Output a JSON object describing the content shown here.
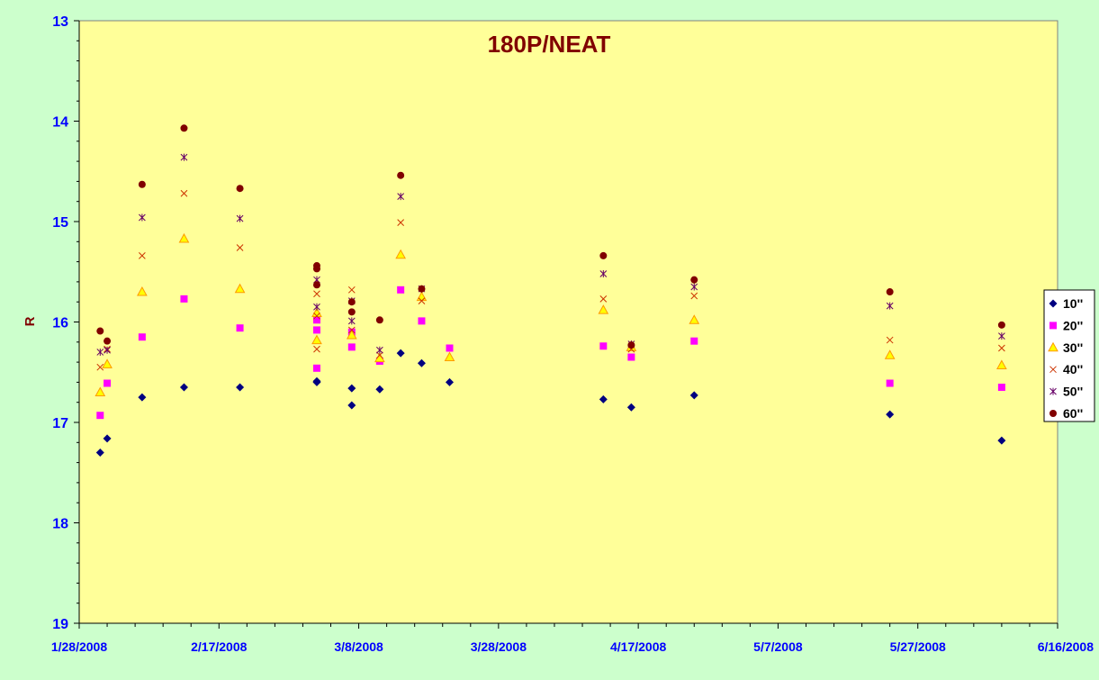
{
  "chart_data": {
    "type": "scatter",
    "title": "180P/NEAT",
    "xlabel": "",
    "ylabel": "R",
    "x_ticks": [
      "1/28/2008",
      "2/17/2008",
      "3/8/2008",
      "3/28/2008",
      "4/17/2008",
      "5/7/2008",
      "5/27/2008",
      "6/16/2008"
    ],
    "x_range": [
      "1/28/2008",
      "6/16/2008"
    ],
    "y_ticks": [
      "13",
      "14",
      "15",
      "16",
      "17",
      "18",
      "19"
    ],
    "ylim": [
      13,
      19
    ],
    "y_inverted": true,
    "legend_position": "right",
    "colors": {
      "background": "#ccffcc",
      "plot_area": "#ffff99",
      "title": "#800000",
      "tick_labels": "#0000ff"
    },
    "series": [
      {
        "name": "10''",
        "marker": "diamond",
        "color": "#000080",
        "points": [
          {
            "x": "1/31/2008",
            "y": 17.3
          },
          {
            "x": "2/1/2008",
            "y": 17.16
          },
          {
            "x": "2/6/2008",
            "y": 16.75
          },
          {
            "x": "2/12/2008",
            "y": 16.65
          },
          {
            "x": "2/20/2008",
            "y": 16.65
          },
          {
            "x": "3/2/2008",
            "y": 16.59
          },
          {
            "x": "3/2/2008",
            "y": 16.6
          },
          {
            "x": "3/7/2008",
            "y": 16.83
          },
          {
            "x": "3/7/2008",
            "y": 16.66
          },
          {
            "x": "3/11/2008",
            "y": 16.67
          },
          {
            "x": "3/14/2008",
            "y": 16.31
          },
          {
            "x": "3/17/2008",
            "y": 16.41
          },
          {
            "x": "3/21/2008",
            "y": 16.6
          },
          {
            "x": "4/12/2008",
            "y": 16.77
          },
          {
            "x": "4/16/2008",
            "y": 16.85
          },
          {
            "x": "4/25/2008",
            "y": 16.73
          },
          {
            "x": "5/23/2008",
            "y": 16.92
          },
          {
            "x": "6/8/2008",
            "y": 17.18
          }
        ]
      },
      {
        "name": "20''",
        "marker": "square",
        "color": "#ff00ff",
        "points": [
          {
            "x": "1/31/2008",
            "y": 16.93
          },
          {
            "x": "2/1/2008",
            "y": 16.61
          },
          {
            "x": "2/6/2008",
            "y": 16.15
          },
          {
            "x": "2/12/2008",
            "y": 15.77
          },
          {
            "x": "2/20/2008",
            "y": 16.06
          },
          {
            "x": "3/2/2008",
            "y": 15.98
          },
          {
            "x": "3/2/2008",
            "y": 16.08
          },
          {
            "x": "3/2/2008",
            "y": 16.46
          },
          {
            "x": "3/7/2008",
            "y": 16.25
          },
          {
            "x": "3/7/2008",
            "y": 16.1
          },
          {
            "x": "3/11/2008",
            "y": 16.39
          },
          {
            "x": "3/14/2008",
            "y": 15.68
          },
          {
            "x": "3/17/2008",
            "y": 15.99
          },
          {
            "x": "3/21/2008",
            "y": 16.26
          },
          {
            "x": "4/12/2008",
            "y": 16.24
          },
          {
            "x": "4/16/2008",
            "y": 16.35
          },
          {
            "x": "4/25/2008",
            "y": 16.19
          },
          {
            "x": "5/23/2008",
            "y": 16.61
          },
          {
            "x": "6/8/2008",
            "y": 16.65
          }
        ]
      },
      {
        "name": "30''",
        "marker": "triangle",
        "color": "#ff9900",
        "points": [
          {
            "x": "1/31/2008",
            "y": 16.7
          },
          {
            "x": "2/1/2008",
            "y": 16.42
          },
          {
            "x": "2/6/2008",
            "y": 15.7
          },
          {
            "x": "2/12/2008",
            "y": 15.17
          },
          {
            "x": "2/20/2008",
            "y": 15.67
          },
          {
            "x": "3/2/2008",
            "y": 15.91
          },
          {
            "x": "3/2/2008",
            "y": 16.18
          },
          {
            "x": "3/7/2008",
            "y": 16.13
          },
          {
            "x": "3/11/2008",
            "y": 16.36
          },
          {
            "x": "3/14/2008",
            "y": 15.33
          },
          {
            "x": "3/17/2008",
            "y": 15.75
          },
          {
            "x": "3/21/2008",
            "y": 16.35
          },
          {
            "x": "4/12/2008",
            "y": 15.88
          },
          {
            "x": "4/16/2008",
            "y": 16.25
          },
          {
            "x": "4/25/2008",
            "y": 15.98
          },
          {
            "x": "5/23/2008",
            "y": 16.33
          },
          {
            "x": "6/8/2008",
            "y": 16.43
          }
        ]
      },
      {
        "name": "40''",
        "marker": "x",
        "color": "#cc3300",
        "points": [
          {
            "x": "1/31/2008",
            "y": 16.45
          },
          {
            "x": "2/1/2008",
            "y": 16.27
          },
          {
            "x": "2/6/2008",
            "y": 15.34
          },
          {
            "x": "2/12/2008",
            "y": 14.72
          },
          {
            "x": "2/20/2008",
            "y": 15.26
          },
          {
            "x": "3/2/2008",
            "y": 15.72
          },
          {
            "x": "3/2/2008",
            "y": 15.94
          },
          {
            "x": "3/2/2008",
            "y": 16.27
          },
          {
            "x": "3/7/2008",
            "y": 15.68
          },
          {
            "x": "3/7/2008",
            "y": 16.08
          },
          {
            "x": "3/11/2008",
            "y": 16.33
          },
          {
            "x": "3/14/2008",
            "y": 15.01
          },
          {
            "x": "3/17/2008",
            "y": 15.79
          },
          {
            "x": "4/12/2008",
            "y": 15.77
          },
          {
            "x": "4/16/2008",
            "y": 16.27
          },
          {
            "x": "4/25/2008",
            "y": 15.74
          },
          {
            "x": "5/23/2008",
            "y": 16.18
          },
          {
            "x": "6/8/2008",
            "y": 16.26
          }
        ]
      },
      {
        "name": "50''",
        "marker": "asterisk",
        "color": "#660066",
        "points": [
          {
            "x": "1/31/2008",
            "y": 16.3
          },
          {
            "x": "2/1/2008",
            "y": 16.28
          },
          {
            "x": "2/6/2008",
            "y": 14.96
          },
          {
            "x": "2/12/2008",
            "y": 14.36
          },
          {
            "x": "2/20/2008",
            "y": 14.97
          },
          {
            "x": "3/2/2008",
            "y": 15.58
          },
          {
            "x": "3/2/2008",
            "y": 15.85
          },
          {
            "x": "3/7/2008",
            "y": 15.79
          },
          {
            "x": "3/7/2008",
            "y": 15.99
          },
          {
            "x": "3/11/2008",
            "y": 16.28
          },
          {
            "x": "3/14/2008",
            "y": 14.75
          },
          {
            "x": "3/17/2008",
            "y": 15.67
          },
          {
            "x": "4/12/2008",
            "y": 15.52
          },
          {
            "x": "4/16/2008",
            "y": 16.22
          },
          {
            "x": "4/25/2008",
            "y": 15.65
          },
          {
            "x": "5/23/2008",
            "y": 15.84
          },
          {
            "x": "6/8/2008",
            "y": 16.14
          }
        ]
      },
      {
        "name": "60''",
        "marker": "circle",
        "color": "#800000",
        "points": [
          {
            "x": "1/31/2008",
            "y": 16.09
          },
          {
            "x": "2/1/2008",
            "y": 16.19
          },
          {
            "x": "2/6/2008",
            "y": 14.63
          },
          {
            "x": "2/12/2008",
            "y": 14.07
          },
          {
            "x": "2/20/2008",
            "y": 14.67
          },
          {
            "x": "3/2/2008",
            "y": 15.44
          },
          {
            "x": "3/2/2008",
            "y": 15.47
          },
          {
            "x": "3/2/2008",
            "y": 15.63
          },
          {
            "x": "3/7/2008",
            "y": 15.8
          },
          {
            "x": "3/7/2008",
            "y": 15.9
          },
          {
            "x": "3/11/2008",
            "y": 15.98
          },
          {
            "x": "3/14/2008",
            "y": 14.54
          },
          {
            "x": "3/17/2008",
            "y": 15.67
          },
          {
            "x": "4/12/2008",
            "y": 15.34
          },
          {
            "x": "4/16/2008",
            "y": 16.23
          },
          {
            "x": "4/25/2008",
            "y": 15.58
          },
          {
            "x": "5/23/2008",
            "y": 15.7
          },
          {
            "x": "6/8/2008",
            "y": 16.03
          }
        ]
      }
    ]
  }
}
